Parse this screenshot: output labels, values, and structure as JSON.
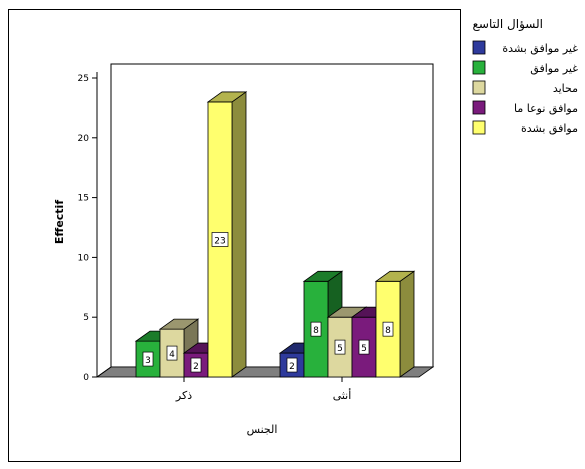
{
  "chart_data": {
    "type": "bar",
    "title": "",
    "xlabel": "الجنس",
    "ylabel": "Effectif",
    "ylim": [
      0,
      25
    ],
    "yticks": [
      0,
      5,
      10,
      15,
      20,
      25
    ],
    "grid": false,
    "legend_position": "right",
    "legend_title": "السؤال التاسع",
    "categories": [
      "ذكر",
      "أنثى"
    ],
    "series": [
      {
        "name": "غير موافق بشدة",
        "color": "#2e3a9c",
        "values": [
          0,
          2
        ]
      },
      {
        "name": "غير موافق",
        "color": "#28b13c",
        "values": [
          3,
          8
        ]
      },
      {
        "name": "محايد",
        "color": "#ddd89f",
        "values": [
          4,
          5
        ]
      },
      {
        "name": "موافق نوعا ما",
        "color": "#7a1b7c",
        "values": [
          2,
          5
        ]
      },
      {
        "name": "موافق بشدة",
        "color": "#ffff6e",
        "values": [
          23,
          8
        ]
      }
    ],
    "data_labels": [
      [
        "",
        "3",
        "4",
        "2",
        "23"
      ],
      [
        "2",
        "8",
        "5",
        "5",
        "8"
      ]
    ]
  }
}
